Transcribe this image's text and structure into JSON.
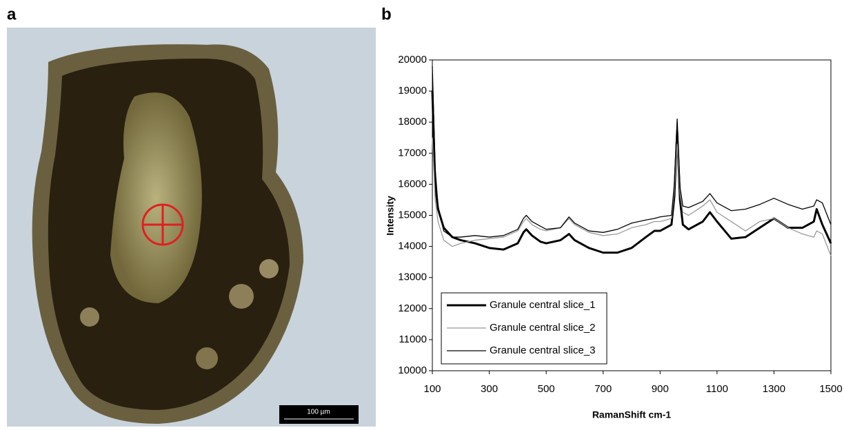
{
  "panel_labels": [
    "a",
    "b"
  ],
  "scale_bar": "100 µm",
  "chart_data": {
    "type": "line",
    "x_label": "RamanShift cm-1",
    "y_label": "Intensity",
    "xlim": [
      100,
      1500
    ],
    "xticks": [
      100,
      300,
      500,
      700,
      900,
      1100,
      1300,
      1500
    ],
    "ylim": [
      10000,
      20000
    ],
    "yticks": [
      10000,
      11000,
      12000,
      13000,
      14000,
      15000,
      16000,
      17000,
      18000,
      19000,
      20000
    ],
    "legend": "lower left",
    "x": [
      100,
      110,
      120,
      140,
      170,
      200,
      250,
      300,
      350,
      400,
      420,
      430,
      450,
      480,
      500,
      550,
      580,
      600,
      650,
      700,
      750,
      800,
      850,
      880,
      900,
      940,
      950,
      960,
      970,
      980,
      1000,
      1050,
      1075,
      1100,
      1150,
      1200,
      1250,
      1300,
      1350,
      1400,
      1440,
      1450,
      1470,
      1500
    ],
    "series": [
      {
        "name": "Granule central slice_1",
        "color": "#000000",
        "values": [
          19000,
          16000,
          15200,
          14600,
          14300,
          14200,
          14100,
          13950,
          13900,
          14100,
          14450,
          14550,
          14350,
          14150,
          14100,
          14200,
          14400,
          14200,
          13950,
          13800,
          13800,
          13950,
          14300,
          14500,
          14500,
          14700,
          15600,
          17700,
          15500,
          14700,
          14550,
          14800,
          15100,
          14800,
          14250,
          14300,
          14600,
          14900,
          14600,
          14600,
          14800,
          15200,
          14700,
          14100
        ]
      },
      {
        "name": "Granule central slice_2",
        "color": "#999999",
        "values": [
          17500,
          15500,
          14800,
          14200,
          14000,
          14100,
          14200,
          14250,
          14300,
          14500,
          14800,
          14900,
          14700,
          14550,
          14500,
          14600,
          14900,
          14700,
          14450,
          14350,
          14400,
          14600,
          14700,
          14800,
          14800,
          14900,
          15800,
          17300,
          15700,
          15100,
          15000,
          15300,
          15500,
          15100,
          14800,
          14500,
          14800,
          14900,
          14600,
          14400,
          14300,
          14500,
          14400,
          13700
        ]
      },
      {
        "name": "Granule central slice_3",
        "color": "#000000",
        "values": [
          19800,
          16500,
          15300,
          14500,
          14300,
          14300,
          14350,
          14300,
          14350,
          14550,
          14900,
          15000,
          14800,
          14650,
          14550,
          14600,
          14950,
          14750,
          14500,
          14450,
          14550,
          14750,
          14850,
          14900,
          14950,
          15000,
          16000,
          18100,
          15900,
          15300,
          15250,
          15450,
          15700,
          15400,
          15150,
          15200,
          15350,
          15550,
          15350,
          15200,
          15300,
          15500,
          15400,
          14700
        ]
      }
    ]
  }
}
